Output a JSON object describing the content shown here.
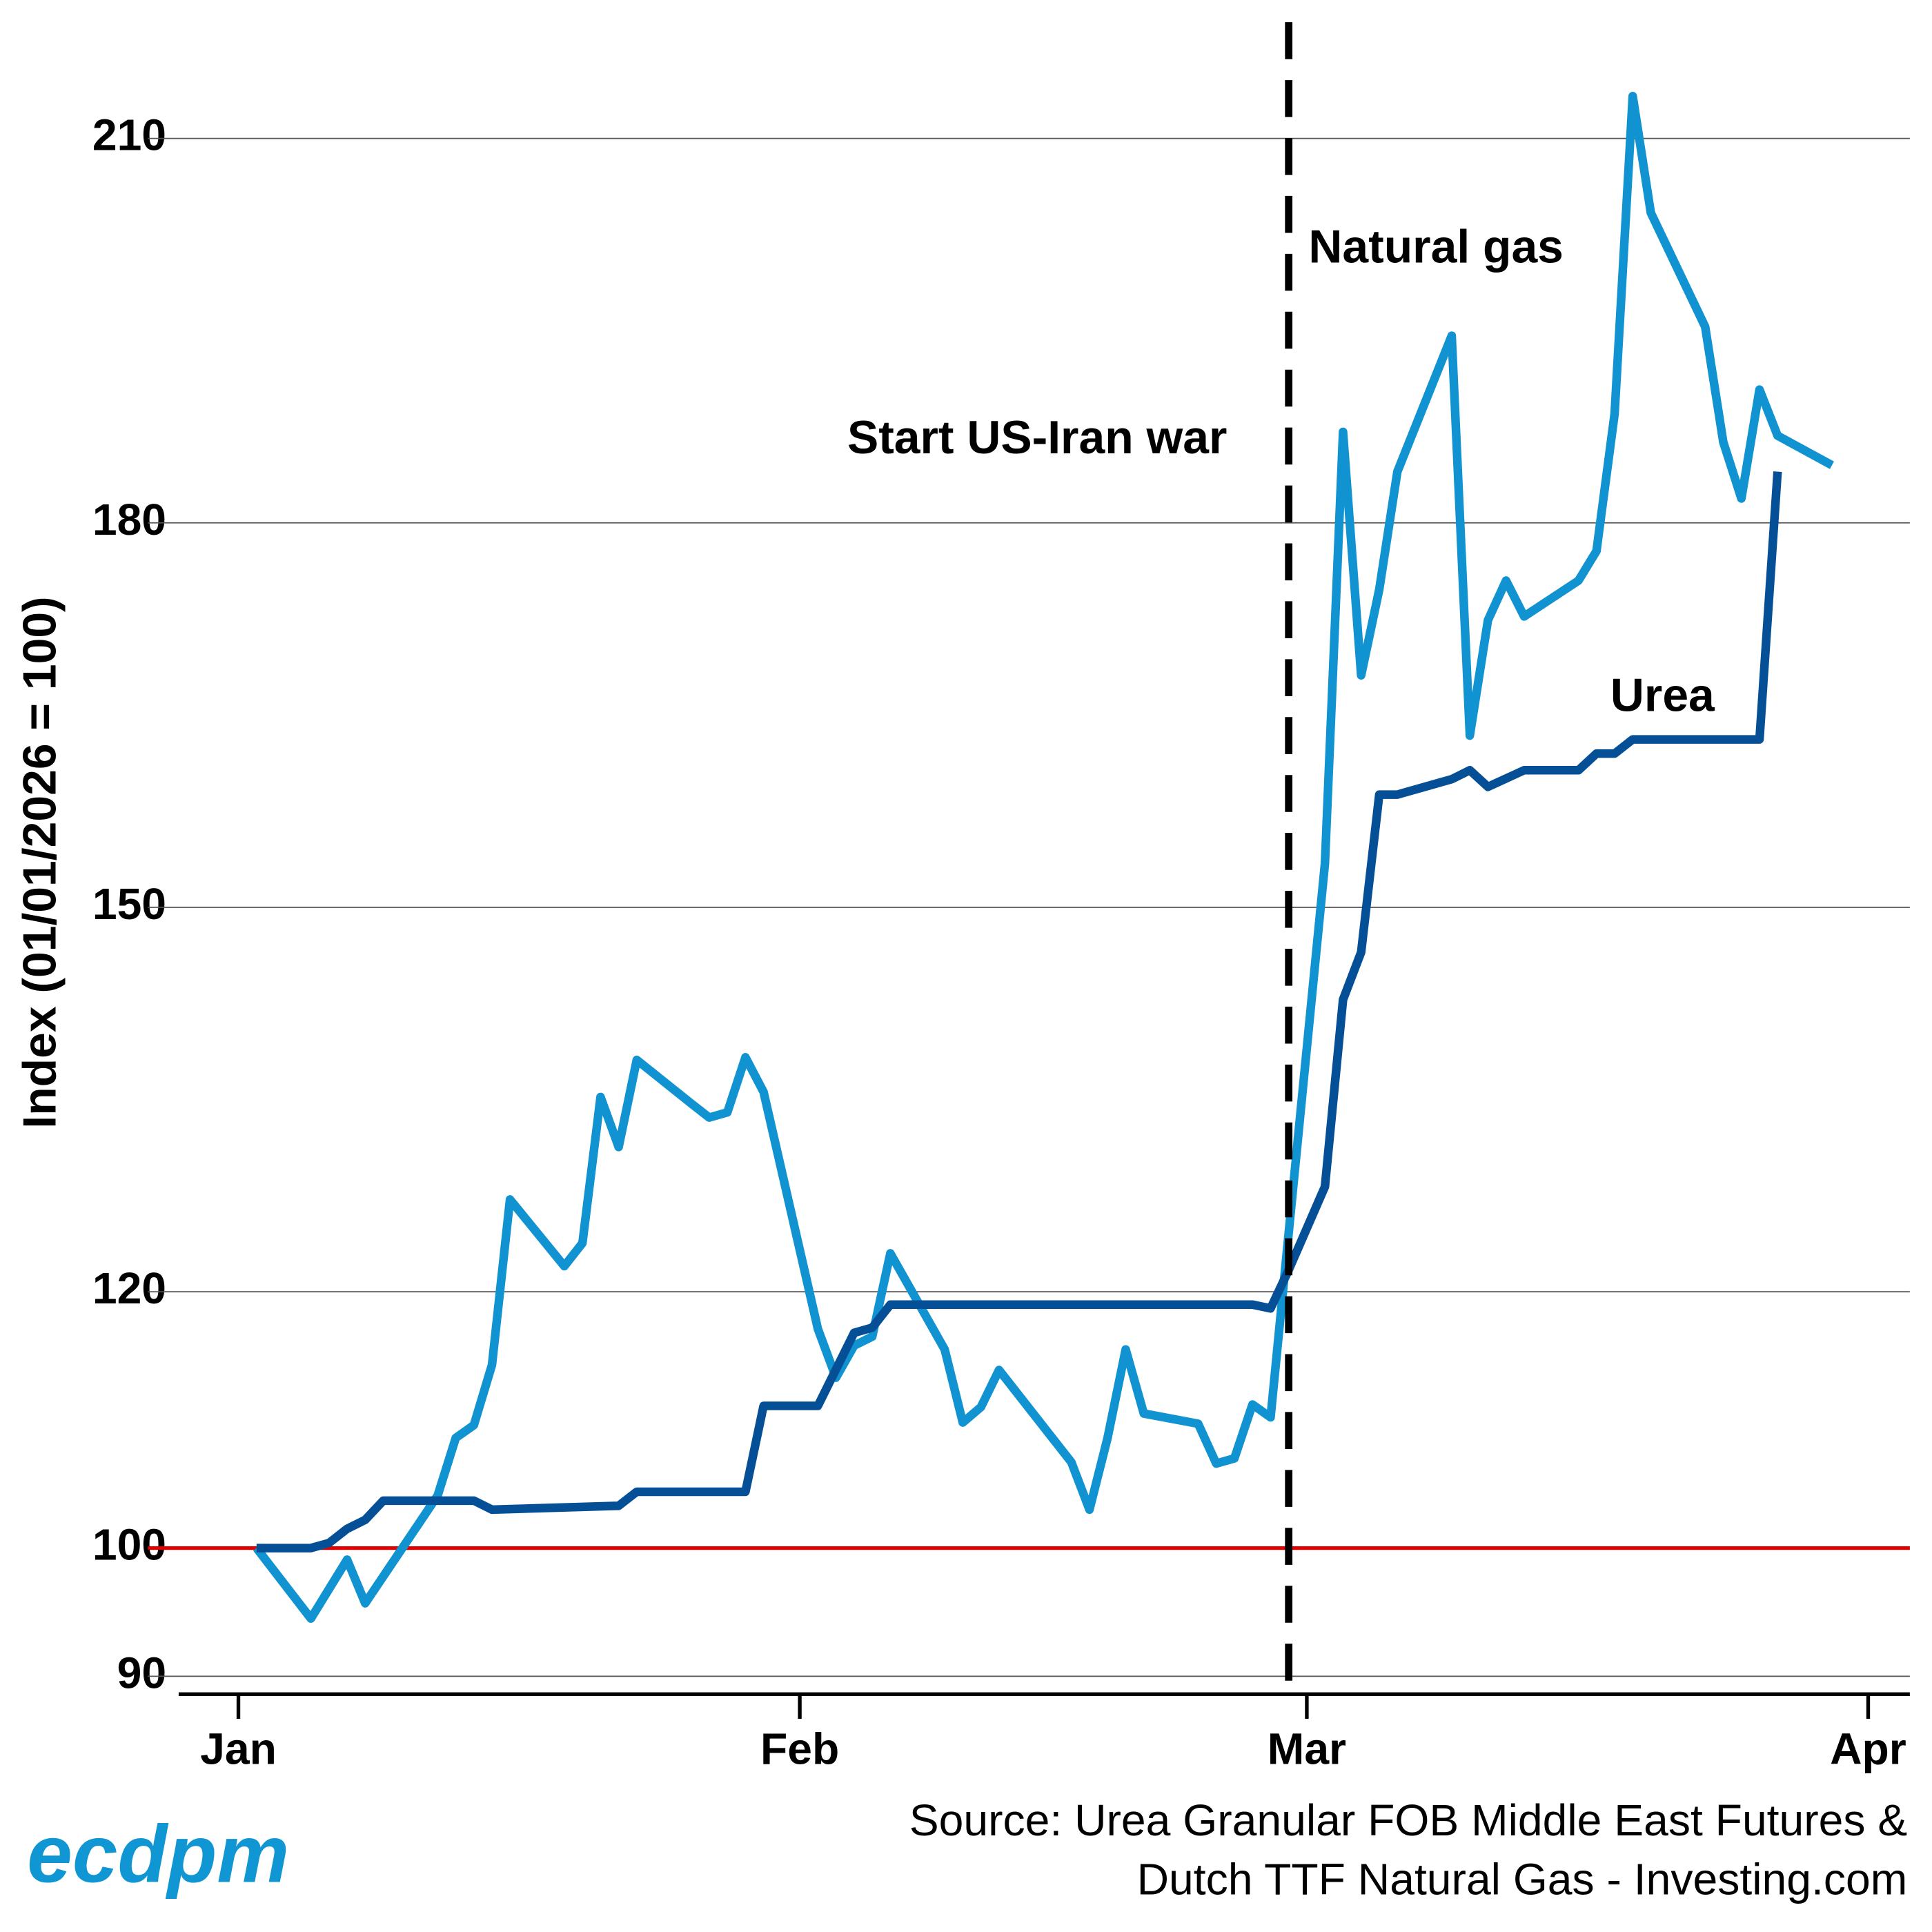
{
  "chart_data": {
    "type": "line",
    "y_label": "Index (01/01/2026 = 100)",
    "source": [
      "Source: Urea Granular FOB Middle East Futures &",
      "Dutch TTF Natural Gas - Investing.com"
    ],
    "logo": "ecdpm",
    "xlim": [
      -3.3,
      92.3
    ],
    "xticks": [
      {
        "value": 0,
        "label": "Jan"
      },
      {
        "value": 31,
        "label": "Feb"
      },
      {
        "value": 59,
        "label": "Mar"
      },
      {
        "value": 90,
        "label": "Apr"
      }
    ],
    "ylim": [
      88.6,
      220.8
    ],
    "yticks": [
      90,
      100,
      120,
      150,
      180,
      210
    ],
    "grid": true,
    "reference_line": {
      "value": 100,
      "color": "#e00000"
    },
    "event_line": {
      "value": 58,
      "label": "Start US-Iran war",
      "color": "#000000"
    },
    "series": [
      {
        "name": "Natural gas",
        "color": "#1193d1",
        "x": [
          1,
          4,
          6,
          7,
          11,
          12,
          13,
          14,
          15,
          18,
          19,
          20,
          21,
          22,
          25,
          26,
          27,
          28,
          29,
          32,
          33,
          34,
          35,
          36,
          39,
          40,
          41,
          42,
          46,
          47,
          48,
          49,
          50,
          53,
          54,
          55,
          56,
          57,
          60,
          61,
          62,
          63,
          64,
          67,
          68,
          69,
          70,
          71,
          74,
          75,
          76,
          77,
          78,
          81,
          82,
          83,
          84,
          85,
          88
        ],
        "values": [
          100,
          94.5,
          99.1,
          95.7,
          104.1,
          108.6,
          109.6,
          114.3,
          127.2,
          122.0,
          123.8,
          135.2,
          131.3,
          138.1,
          134.7,
          133.6,
          134.0,
          138.3,
          135.6,
          117.1,
          113.3,
          115.8,
          116.5,
          123.0,
          115.5,
          109.8,
          111.0,
          113.9,
          106.7,
          103.0,
          108.6,
          115.5,
          110.5,
          109.7,
          106.6,
          107.0,
          111.2,
          110.2,
          153.4,
          187.1,
          168.1,
          174.8,
          184.0,
          194.6,
          163.4,
          172.4,
          175.5,
          172.7,
          175.5,
          177.8,
          188.5,
          213.3,
          204.2,
          195.3,
          186.3,
          181.9,
          190.4,
          186.8,
          184.5
        ]
      },
      {
        "name": "Urea",
        "color": "#054f97",
        "x": [
          1,
          4,
          5,
          6,
          7,
          8,
          13,
          14,
          21,
          22,
          28,
          29,
          32,
          34,
          35,
          36,
          56,
          57,
          58,
          60,
          61,
          62,
          63,
          64,
          67,
          68,
          69,
          71,
          74,
          75,
          76,
          77,
          84,
          85
        ],
        "values": [
          100,
          100,
          100.4,
          101.5,
          102.2,
          103.7,
          103.7,
          103.0,
          103.3,
          104.4,
          104.4,
          111.1,
          111.1,
          116.8,
          117.2,
          119.0,
          119.0,
          118.7,
          121.7,
          128.2,
          142.8,
          146.5,
          158.8,
          158.8,
          160.0,
          160.7,
          159.4,
          160.7,
          160.7,
          162.0,
          162.0,
          163.1,
          163.1,
          184.0
        ]
      }
    ]
  }
}
